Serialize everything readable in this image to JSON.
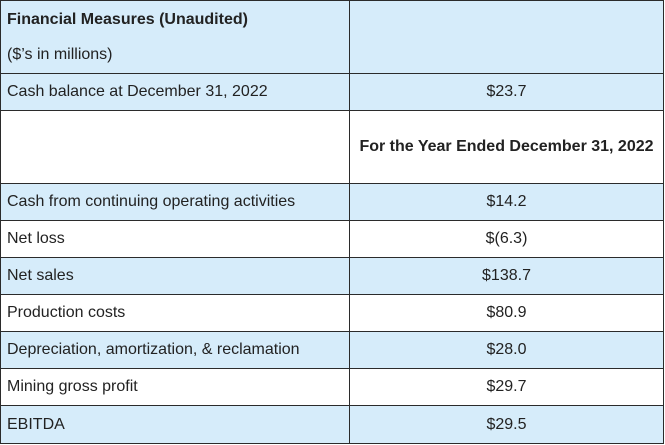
{
  "header": {
    "title": "Financial Measures (Unaudited)",
    "subtitle": "($’s in millions)"
  },
  "cash_balance": {
    "label": "Cash balance at December 31, 2022",
    "value": "$23.7"
  },
  "period_header": "For the Year Ended December 31, 2022",
  "rows": [
    {
      "label": "Cash from continuing operating activities",
      "value": "$14.2"
    },
    {
      "label": "Net loss",
      "value": "$(6.3)"
    },
    {
      "label": "Net sales",
      "value": "$138.7"
    },
    {
      "label": "Production costs",
      "value": "$80.9"
    },
    {
      "label": "Depreciation, amortization, & reclamation",
      "value": "$28.0"
    },
    {
      "label": "Mining gross profit",
      "value": "$29.7"
    },
    {
      "label": "EBITDA",
      "value": "$29.5"
    }
  ],
  "colors": {
    "row_blue": "#d6ecfa",
    "row_white": "#ffffff",
    "border": "#2b2b2b"
  }
}
